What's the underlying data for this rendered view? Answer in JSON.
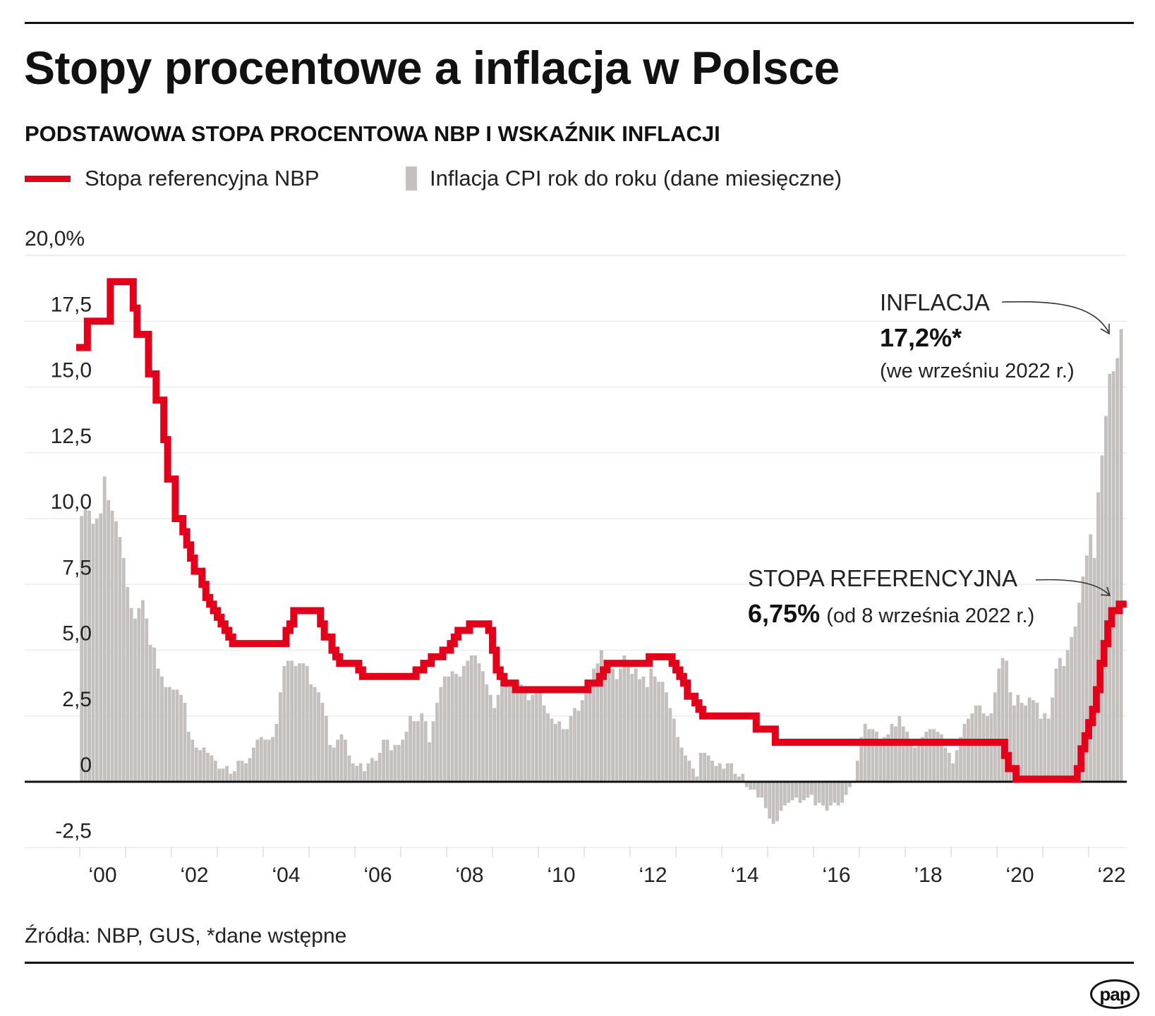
{
  "title": "Stopy procentowe a inflacja w Polsce",
  "subtitle": "PODSTAWOWA STOPA PROCENTOWA NBP I WSKAŹNIK INFLACJI",
  "legend": {
    "rate_label": "Stopa referencyjna NBP",
    "inflation_label": "Inflacja CPI rok do roku (dane miesięczne)"
  },
  "annotations": {
    "inflation": {
      "title": "INFLACJA",
      "value": "17,2%*",
      "note": "(we wrześniu 2022 r.)"
    },
    "rate": {
      "title": "STOPA REFERENCYJNA",
      "value": "6,75%",
      "note": "(od 8 września 2022 r.)"
    }
  },
  "source": "Źródła: NBP, GUS, *dane wstępne",
  "logo": "pap",
  "colors": {
    "rate": "#e2001a",
    "inflation": "#c5c0bd",
    "grid": "#ececec",
    "axis": "#111111"
  },
  "chart_data": {
    "type": "bar+line",
    "ylim": [
      -2.5,
      20
    ],
    "yticks": [
      -2.5,
      0,
      2.5,
      5,
      7.5,
      10,
      12.5,
      15,
      17.5,
      20
    ],
    "ytick_labels": [
      "-2,5",
      "0",
      "2,5",
      "5,0",
      "7,5",
      "10,0",
      "12,5",
      "15,0",
      "17,5",
      "20,0%"
    ],
    "xlim": [
      "2000-01",
      "2022-09"
    ],
    "xtick_years": [
      2000,
      2002,
      2004,
      2006,
      2008,
      2010,
      2012,
      2014,
      2016,
      2018,
      2020,
      2022
    ],
    "xtick_labels": [
      "‘00",
      "‘02",
      "‘04",
      "‘06",
      "‘08",
      "‘10",
      "‘12",
      "‘14",
      "‘16",
      "’18",
      "‘20",
      "‘22"
    ],
    "grid": true,
    "legend_position": "top-left",
    "inflation_start": "2000-01",
    "inflation_monthly": [
      10.1,
      10.4,
      10.3,
      9.8,
      10.0,
      10.2,
      11.6,
      10.7,
      10.3,
      9.9,
      9.3,
      8.5,
      7.4,
      6.6,
      6.2,
      6.6,
      6.9,
      6.2,
      5.2,
      5.1,
      4.3,
      4.0,
      3.6,
      3.6,
      3.5,
      3.5,
      3.3,
      3.0,
      1.9,
      1.6,
      1.3,
      1.2,
      1.3,
      1.1,
      1.0,
      0.8,
      0.5,
      0.5,
      0.6,
      0.3,
      0.4,
      0.8,
      0.8,
      0.7,
      0.9,
      1.3,
      1.6,
      1.7,
      1.6,
      1.6,
      1.7,
      2.2,
      3.4,
      4.4,
      4.6,
      4.6,
      4.4,
      4.5,
      4.5,
      4.4,
      3.7,
      3.6,
      3.4,
      3.0,
      2.5,
      1.4,
      1.3,
      1.6,
      1.8,
      1.6,
      1.0,
      0.7,
      0.6,
      0.7,
      0.4,
      0.7,
      0.9,
      0.8,
      1.1,
      1.6,
      1.6,
      1.2,
      1.4,
      1.4,
      1.6,
      1.9,
      2.5,
      2.3,
      2.3,
      2.6,
      2.3,
      1.5,
      2.3,
      3.0,
      3.6,
      4.0,
      4.0,
      4.2,
      4.1,
      4.0,
      4.4,
      4.6,
      4.8,
      4.8,
      4.5,
      4.2,
      3.7,
      3.3,
      2.8,
      3.3,
      3.6,
      4.0,
      3.6,
      3.5,
      3.6,
      3.7,
      3.4,
      3.1,
      3.3,
      3.5,
      3.5,
      2.9,
      2.6,
      2.4,
      2.2,
      2.3,
      2.0,
      2.0,
      2.5,
      2.8,
      2.7,
      3.1,
      3.6,
      3.6,
      4.3,
      4.5,
      5.0,
      4.2,
      4.1,
      4.3,
      3.9,
      4.3,
      4.8,
      4.6,
      4.1,
      4.3,
      3.9,
      4.0,
      3.6,
      4.3,
      4.0,
      3.8,
      3.8,
      3.4,
      2.8,
      2.4,
      1.7,
      1.3,
      1.0,
      0.8,
      0.5,
      0.2,
      1.1,
      1.1,
      1.0,
      0.8,
      0.6,
      0.7,
      0.5,
      0.7,
      0.7,
      0.3,
      0.2,
      0.3,
      -0.2,
      -0.3,
      -0.3,
      -0.6,
      -0.6,
      -1.0,
      -1.4,
      -1.6,
      -1.5,
      -1.1,
      -0.9,
      -0.8,
      -0.7,
      -0.6,
      -0.8,
      -0.7,
      -0.6,
      -0.5,
      -0.9,
      -0.8,
      -0.9,
      -1.1,
      -0.9,
      -0.8,
      -0.9,
      -0.8,
      -0.5,
      -0.2,
      0.0,
      0.8,
      1.7,
      2.2,
      2.0,
      2.0,
      1.9,
      1.5,
      1.7,
      1.8,
      2.2,
      2.1,
      2.5,
      2.1,
      1.9,
      1.4,
      1.3,
      1.6,
      1.7,
      1.9,
      2.0,
      2.0,
      1.9,
      1.8,
      1.3,
      1.1,
      0.7,
      1.2,
      1.7,
      2.2,
      2.4,
      2.6,
      2.9,
      2.9,
      2.6,
      2.5,
      2.6,
      3.4,
      4.3,
      4.7,
      4.6,
      3.4,
      2.9,
      3.3,
      3.0,
      2.9,
      3.2,
      3.1,
      3.0,
      2.4,
      2.6,
      2.4,
      3.2,
      4.3,
      4.7,
      4.4,
      5.0,
      5.5,
      5.9,
      6.8,
      7.8,
      8.6,
      9.4,
      8.5,
      11.0,
      12.4,
      13.9,
      15.5,
      15.6,
      16.1,
      17.2
    ],
    "reference_rate_changes": [
      [
        "2000-01",
        16.5
      ],
      [
        "2000-03",
        17.5
      ],
      [
        "2000-09",
        19.0
      ],
      [
        "2001-03",
        18.0
      ],
      [
        "2001-04",
        17.0
      ],
      [
        "2001-07",
        15.5
      ],
      [
        "2001-09",
        14.5
      ],
      [
        "2001-11",
        13.0
      ],
      [
        "2001-12",
        11.5
      ],
      [
        "2002-02",
        10.0
      ],
      [
        "2002-04",
        9.5
      ],
      [
        "2002-05",
        9.0
      ],
      [
        "2002-06",
        8.5
      ],
      [
        "2002-07",
        8.0
      ],
      [
        "2002-09",
        7.5
      ],
      [
        "2002-10",
        7.0
      ],
      [
        "2002-11",
        6.75
      ],
      [
        "2002-12",
        6.5
      ],
      [
        "2003-01",
        6.25
      ],
      [
        "2003-02",
        6.0
      ],
      [
        "2003-03",
        5.75
      ],
      [
        "2003-04",
        5.5
      ],
      [
        "2003-05",
        5.25
      ],
      [
        "2004-07",
        5.75
      ],
      [
        "2004-08",
        6.0
      ],
      [
        "2004-09",
        6.5
      ],
      [
        "2005-04",
        6.0
      ],
      [
        "2005-05",
        5.5
      ],
      [
        "2005-07",
        5.0
      ],
      [
        "2005-08",
        4.75
      ],
      [
        "2005-09",
        4.5
      ],
      [
        "2006-02",
        4.25
      ],
      [
        "2006-03",
        4.0
      ],
      [
        "2007-05",
        4.25
      ],
      [
        "2007-07",
        4.5
      ],
      [
        "2007-09",
        4.75
      ],
      [
        "2007-12",
        5.0
      ],
      [
        "2008-02",
        5.25
      ],
      [
        "2008-03",
        5.5
      ],
      [
        "2008-04",
        5.75
      ],
      [
        "2008-07",
        6.0
      ],
      [
        "2008-12",
        5.75
      ],
      [
        "2009-01",
        5.0
      ],
      [
        "2009-02",
        4.25
      ],
      [
        "2009-03",
        4.0
      ],
      [
        "2009-04",
        3.75
      ],
      [
        "2009-07",
        3.5
      ],
      [
        "2011-02",
        3.75
      ],
      [
        "2011-05",
        4.0
      ],
      [
        "2011-06",
        4.25
      ],
      [
        "2011-07",
        4.5
      ],
      [
        "2012-06",
        4.75
      ],
      [
        "2012-12",
        4.5
      ],
      [
        "2013-01",
        4.25
      ],
      [
        "2013-02",
        4.0
      ],
      [
        "2013-03",
        3.75
      ],
      [
        "2013-04",
        3.25
      ],
      [
        "2013-06",
        3.0
      ],
      [
        "2013-07",
        2.75
      ],
      [
        "2013-08",
        2.5
      ],
      [
        "2014-10",
        2.0
      ],
      [
        "2015-03",
        1.5
      ],
      [
        "2020-03",
        1.0
      ],
      [
        "2020-04",
        0.5
      ],
      [
        "2020-06",
        0.1
      ],
      [
        "2021-10",
        0.5
      ],
      [
        "2021-11",
        1.25
      ],
      [
        "2021-12",
        1.75
      ],
      [
        "2022-01",
        2.25
      ],
      [
        "2022-02",
        2.75
      ],
      [
        "2022-03",
        3.5
      ],
      [
        "2022-04",
        4.5
      ],
      [
        "2022-05",
        5.25
      ],
      [
        "2022-06",
        6.0
      ],
      [
        "2022-07",
        6.5
      ],
      [
        "2022-09",
        6.75
      ]
    ]
  }
}
